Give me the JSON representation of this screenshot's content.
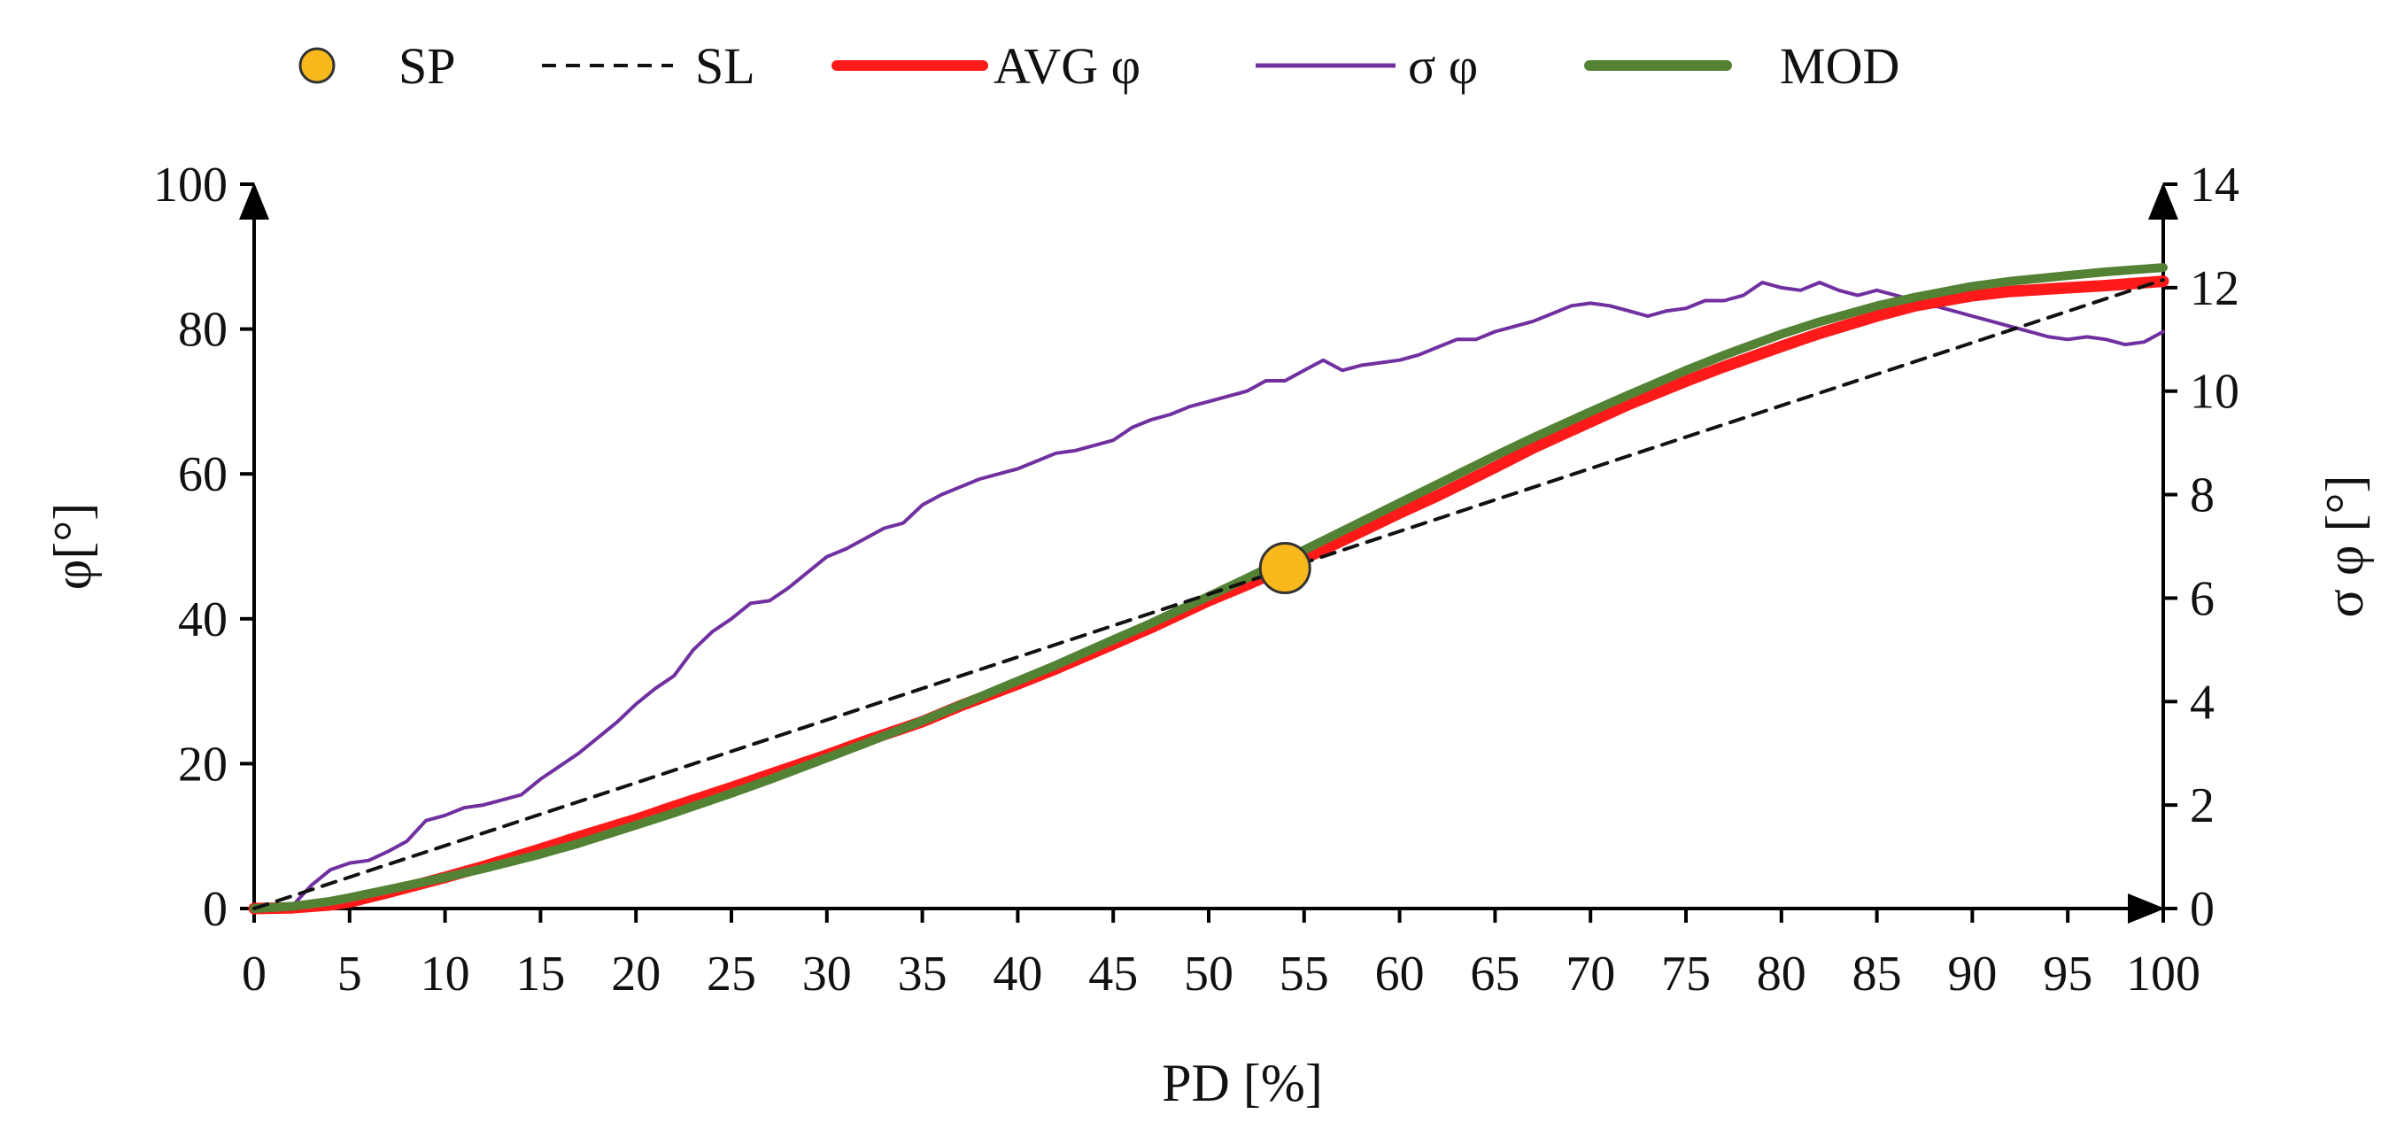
{
  "chart_data": {
    "type": "line",
    "title": "",
    "xlabel": "PD [%]",
    "ylabel": "φ[°]",
    "y2label": "σ φ [°]",
    "xlim": [
      0,
      100
    ],
    "ylim": [
      0,
      100
    ],
    "y2lim": [
      0,
      14
    ],
    "x_ticks": [
      0,
      5,
      10,
      15,
      20,
      25,
      30,
      35,
      40,
      45,
      50,
      55,
      60,
      65,
      70,
      75,
      80,
      85,
      90,
      95,
      100
    ],
    "y_ticks": [
      0,
      20,
      40,
      60,
      80,
      100
    ],
    "y2_ticks": [
      0,
      2,
      4,
      6,
      8,
      10,
      12,
      14
    ],
    "legend": {
      "placement": "top",
      "entries": [
        {
          "key": "sp",
          "label": "SP"
        },
        {
          "key": "sl",
          "label": "SL"
        },
        {
          "key": "avg",
          "label": "AVG φ"
        },
        {
          "key": "sigma",
          "label": "σ φ"
        },
        {
          "key": "mod",
          "label": "MOD"
        }
      ]
    },
    "colors": {
      "sp_fill": "#F9B81C",
      "sp_stroke": "#333333",
      "sl": "#111111",
      "avg": "#FF1A1A",
      "sigma": "#7030A0",
      "mod": "#548235",
      "axis": "#000000"
    },
    "point": {
      "name": "SP",
      "x": 54,
      "y": 47
    },
    "series": [
      {
        "key": "sl",
        "name": "SL",
        "axis": "left",
        "style": "dashed",
        "x": [
          0,
          100
        ],
        "y": [
          0,
          86.8
        ]
      },
      {
        "key": "avg",
        "name": "AVG φ",
        "axis": "left",
        "style": "thick",
        "x": [
          0,
          2,
          4,
          5,
          7,
          10,
          12,
          15,
          17,
          20,
          22,
          25,
          27,
          30,
          32,
          35,
          37,
          40,
          42,
          45,
          47,
          50,
          52,
          54,
          55,
          57,
          60,
          62,
          65,
          67,
          70,
          72,
          75,
          77,
          80,
          82,
          85,
          87,
          90,
          92,
          95,
          97,
          100
        ],
        "y": [
          0,
          0.1,
          0.5,
          0.9,
          2.2,
          4.3,
          5.8,
          8.2,
          9.9,
          12.3,
          14.1,
          16.7,
          18.5,
          21.2,
          23.1,
          25.8,
          28.0,
          31.0,
          33.1,
          36.5,
          38.8,
          42.5,
          44.7,
          47.0,
          48.3,
          50.8,
          54.6,
          57.0,
          60.9,
          63.6,
          67.2,
          69.6,
          72.8,
          74.8,
          77.6,
          79.4,
          81.8,
          83.2,
          84.6,
          85.2,
          85.7,
          86.0,
          86.6
        ]
      },
      {
        "key": "mod",
        "name": "MOD",
        "axis": "left",
        "style": "thick",
        "x": [
          0,
          2,
          4,
          5,
          7,
          10,
          12,
          15,
          17,
          20,
          22,
          25,
          27,
          30,
          32,
          35,
          37,
          40,
          42,
          45,
          47,
          50,
          52,
          55,
          57,
          60,
          62,
          65,
          67,
          70,
          72,
          75,
          77,
          80,
          82,
          85,
          87,
          90,
          92,
          95,
          97,
          100
        ],
        "y": [
          0,
          0.3,
          1.0,
          1.5,
          2.6,
          4.3,
          5.5,
          7.5,
          9.0,
          11.5,
          13.2,
          15.9,
          17.8,
          20.8,
          22.8,
          25.9,
          28.1,
          31.4,
          33.6,
          37.1,
          39.4,
          43.1,
          45.6,
          49.5,
          52.1,
          56.0,
          58.6,
          62.5,
          65.0,
          68.6,
          70.9,
          74.3,
          76.4,
          79.3,
          81.0,
          83.2,
          84.4,
          85.9,
          86.6,
          87.4,
          87.9,
          88.5
        ]
      },
      {
        "key": "sigma",
        "name": "σ φ",
        "axis": "right",
        "style": "thin",
        "x": [
          0,
          1,
          2,
          3,
          4,
          5,
          6,
          7,
          8,
          9,
          10,
          11,
          12,
          13,
          14,
          15,
          16,
          17,
          18,
          19,
          20,
          21,
          22,
          23,
          24,
          25,
          26,
          27,
          28,
          29,
          30,
          31,
          32,
          33,
          34,
          35,
          36,
          37,
          38,
          39,
          40,
          41,
          42,
          43,
          44,
          45,
          46,
          47,
          48,
          49,
          50,
          51,
          52,
          53,
          54,
          55,
          56,
          57,
          58,
          59,
          60,
          61,
          62,
          63,
          64,
          65,
          66,
          67,
          68,
          69,
          70,
          71,
          72,
          73,
          74,
          75,
          76,
          77,
          78,
          79,
          80,
          81,
          82,
          83,
          84,
          85,
          86,
          87,
          88,
          89,
          90,
          91,
          92,
          93,
          94,
          95,
          96,
          97,
          98,
          99,
          100
        ],
        "y": [
          0,
          0.02,
          0.05,
          0.45,
          0.75,
          0.88,
          0.93,
          1.1,
          1.3,
          1.7,
          1.8,
          1.95,
          2.0,
          2.1,
          2.2,
          2.5,
          2.75,
          3.0,
          3.3,
          3.6,
          3.95,
          4.25,
          4.5,
          5.0,
          5.35,
          5.6,
          5.9,
          5.95,
          6.2,
          6.5,
          6.8,
          6.95,
          7.15,
          7.35,
          7.45,
          7.8,
          8.0,
          8.15,
          8.3,
          8.4,
          8.5,
          8.65,
          8.8,
          8.85,
          8.95,
          9.05,
          9.3,
          9.45,
          9.55,
          9.7,
          9.8,
          9.9,
          10.0,
          10.2,
          10.2,
          10.4,
          10.6,
          10.4,
          10.5,
          10.55,
          10.6,
          10.7,
          10.85,
          11.0,
          11.0,
          11.15,
          11.25,
          11.35,
          11.5,
          11.65,
          11.7,
          11.65,
          11.55,
          11.45,
          11.55,
          11.6,
          11.75,
          11.75,
          11.85,
          12.1,
          12.0,
          11.95,
          12.1,
          11.95,
          11.85,
          11.95,
          11.85,
          11.75,
          11.65,
          11.55,
          11.45,
          11.35,
          11.25,
          11.15,
          11.05,
          11.0,
          11.05,
          11.0,
          10.9,
          10.95,
          11.15
        ]
      }
    ]
  }
}
